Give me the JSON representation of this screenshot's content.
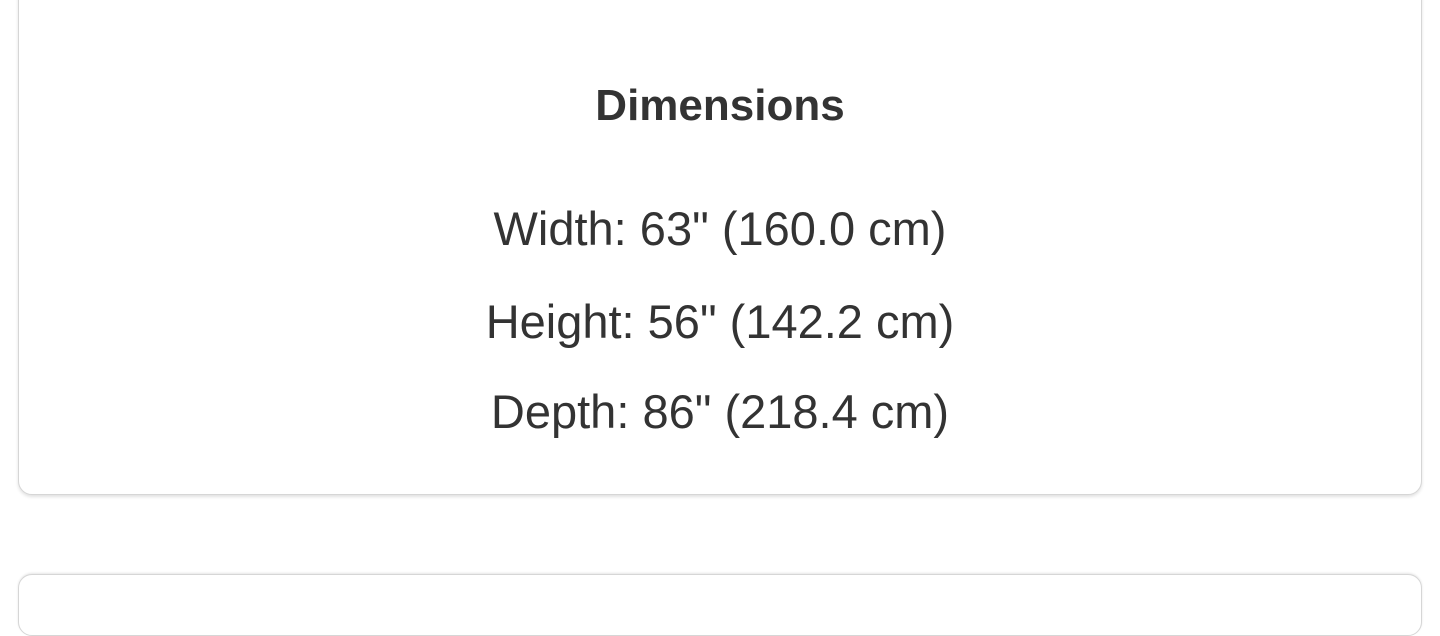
{
  "dimensions": {
    "title": "Dimensions",
    "lines": [
      "Width: 63\" (160.0 cm)",
      "Height: 56\" (142.2 cm)",
      "Depth: 86\" (218.4 cm)"
    ]
  }
}
